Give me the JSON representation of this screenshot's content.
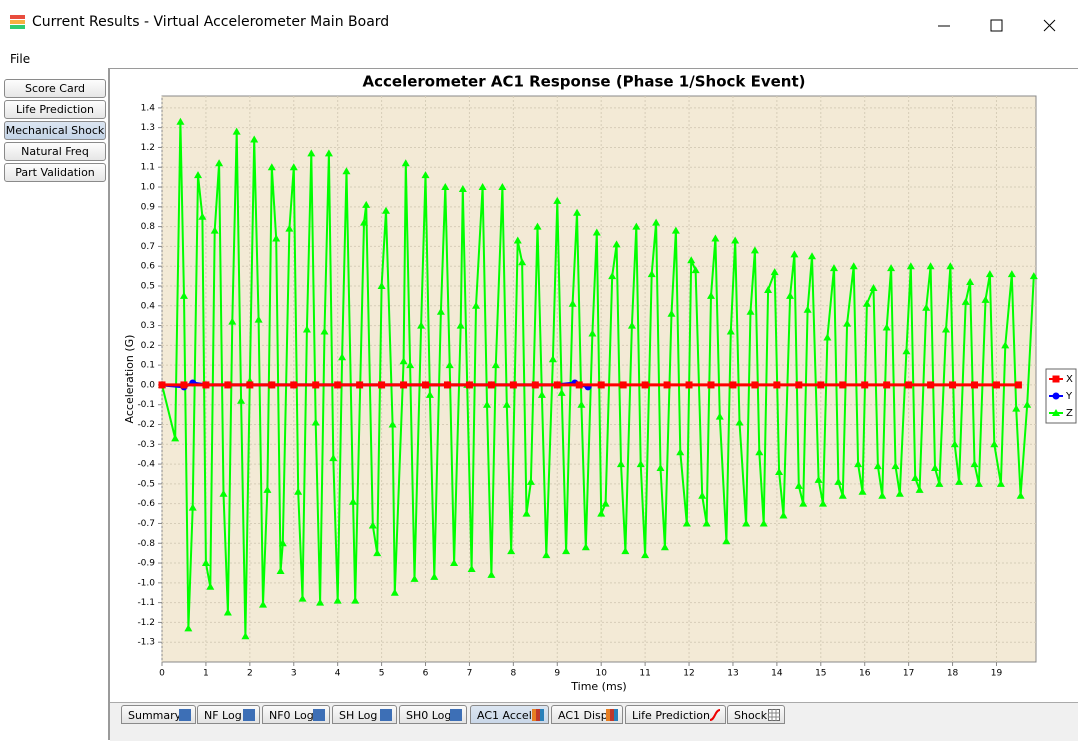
{
  "window": {
    "title": "Current Results - Virtual Accelerometer Main Board"
  },
  "menu": [
    "File"
  ],
  "sidebar": [
    "Score Card",
    "Life Prediction",
    "Mechanical Shock",
    "Natural Freq",
    "Part Validation"
  ],
  "tabs": [
    "Summary",
    "NF Log",
    "NF0 Log",
    "SH Log",
    "SH0 Log",
    "AC1 Accel",
    "AC1 Disp",
    "Life Prediction",
    "Shock"
  ],
  "chart_data": {
    "type": "line",
    "title": "Accelerometer AC1 Response (Phase 1/Shock Event)",
    "x_label": "Time (ms)",
    "y_label": "Acceleration (G)",
    "xlim": [
      0,
      19.9
    ],
    "ylim": [
      -1.4,
      1.46
    ],
    "xticks": [
      0,
      1,
      2,
      3,
      4,
      5,
      6,
      7,
      8,
      9,
      10,
      11,
      12,
      13,
      14,
      15,
      16,
      17,
      18,
      19
    ],
    "yticks": [
      -1.3,
      -1.2,
      -1.1,
      {
        "value": -1.0,
        "label": "-1.0"
      },
      -0.9,
      -0.8,
      -0.7,
      -0.6,
      -0.5,
      -0.4,
      -0.3,
      -0.2,
      -0.1,
      {
        "value": 0,
        "label": "0.0"
      },
      0.1,
      0.2,
      0.3,
      0.4,
      0.5,
      0.6,
      0.7,
      0.8,
      0.9,
      {
        "value": 1.0,
        "label": "1.0"
      },
      1.1,
      1.2,
      1.3,
      1.4
    ],
    "grid": true,
    "legend": "right",
    "series": [
      {
        "name": "X",
        "color": "#ff0000",
        "marker": "square",
        "x": [
          0,
          0.5,
          1,
          1.5,
          2,
          2.5,
          3,
          3.5,
          4,
          4.5,
          5,
          5.5,
          6,
          6.5,
          7,
          7.5,
          8,
          8.5,
          9,
          9.5,
          10,
          10.5,
          11,
          11.5,
          12,
          12.5,
          13,
          13.5,
          14,
          14.5,
          15,
          15.5,
          16,
          16.5,
          17,
          17.5,
          18,
          18.5,
          19,
          19.5
        ],
        "values": [
          0,
          0,
          0,
          0,
          0,
          0,
          0,
          0,
          0,
          0,
          0,
          0,
          0,
          0,
          0,
          0,
          0,
          0,
          0,
          0,
          0,
          0,
          0,
          0,
          0,
          0,
          0,
          0,
          0,
          0,
          0,
          0,
          0,
          0,
          0,
          0,
          0,
          0,
          0,
          0
        ]
      },
      {
        "name": "Y",
        "color": "#0000ff",
        "marker": "circle",
        "x": [
          0,
          0.5,
          0.7,
          1,
          1.5,
          2,
          2.5,
          3,
          3.5,
          4,
          4.5,
          5,
          5.5,
          6,
          6.5,
          7,
          7.5,
          8,
          8.5,
          9,
          9.4,
          9.7
        ],
        "values": [
          0,
          -0.01,
          0.01,
          0,
          0,
          0,
          0,
          0,
          0,
          0,
          0,
          0,
          0,
          0,
          0,
          0,
          0,
          0,
          0,
          0,
          0.01,
          -0.01
        ]
      },
      {
        "name": "Z",
        "color": "#00ff00",
        "marker": "triangle",
        "x": [
          0,
          0.3,
          0.42,
          0.5,
          0.6,
          0.7,
          0.82,
          0.92,
          1.0,
          1.1,
          1.2,
          1.3,
          1.4,
          1.5,
          1.6,
          1.7,
          1.8,
          1.9,
          2.0,
          2.1,
          2.2,
          2.3,
          2.4,
          2.5,
          2.6,
          2.7,
          2.75,
          2.9,
          3.0,
          3.1,
          3.2,
          3.3,
          3.4,
          3.5,
          3.6,
          3.7,
          3.8,
          3.9,
          4.0,
          4.1,
          4.2,
          4.35,
          4.4,
          4.6,
          4.65,
          4.8,
          4.9,
          5.0,
          5.1,
          5.25,
          5.3,
          5.5,
          5.55,
          5.65,
          5.75,
          5.9,
          6.0,
          6.1,
          6.2,
          6.35,
          6.45,
          6.55,
          6.65,
          6.8,
          6.85,
          6.95,
          7.05,
          7.15,
          7.3,
          7.4,
          7.5,
          7.6,
          7.75,
          7.85,
          7.95,
          8.1,
          8.2,
          8.3,
          8.4,
          8.55,
          8.65,
          8.75,
          8.9,
          9.0,
          9.1,
          9.2,
          9.35,
          9.45,
          9.55,
          9.65,
          9.8,
          9.9,
          10.0,
          10.1,
          10.25,
          10.35,
          10.45,
          10.55,
          10.7,
          10.8,
          10.9,
          11.0,
          11.15,
          11.25,
          11.35,
          11.45,
          11.6,
          11.7,
          11.8,
          11.95,
          12.05,
          12.15,
          12.3,
          12.4,
          12.5,
          12.6,
          12.7,
          12.85,
          12.95,
          13.05,
          13.15,
          13.3,
          13.4,
          13.5,
          13.6,
          13.7,
          13.8,
          13.95,
          14.05,
          14.15,
          14.3,
          14.4,
          14.5,
          14.6,
          14.7,
          14.8,
          14.95,
          15.05,
          15.15,
          15.3,
          15.4,
          15.5,
          15.6,
          15.75,
          15.85,
          15.95,
          16.05,
          16.2,
          16.3,
          16.4,
          16.5,
          16.6,
          16.7,
          16.8,
          16.95,
          17.05,
          17.15,
          17.25,
          17.4,
          17.5,
          17.6,
          17.7,
          17.85,
          17.95,
          18.05,
          18.15,
          18.3,
          18.4,
          18.5,
          18.6,
          18.75,
          18.85,
          18.95,
          19.1,
          19.2,
          19.35,
          19.45,
          19.55,
          19.7,
          19.85
        ],
        "values": [
          0,
          -0.27,
          1.33,
          0.45,
          -1.23,
          -0.62,
          1.06,
          0.85,
          -0.9,
          -1.02,
          0.78,
          1.12,
          -0.55,
          -1.15,
          0.32,
          1.28,
          -0.08,
          -1.27,
          0.02,
          1.24,
          0.33,
          -1.11,
          -0.53,
          1.1,
          0.74,
          -0.94,
          -0.8,
          0.79,
          1.1,
          -0.54,
          -1.08,
          0.28,
          1.17,
          -0.19,
          -1.1,
          0.27,
          1.17,
          -0.37,
          -1.09,
          0.14,
          1.08,
          -0.59,
          -1.09,
          0.82,
          0.91,
          -0.71,
          -0.85,
          0.5,
          0.88,
          -0.2,
          -1.05,
          0.12,
          1.12,
          0.1,
          -0.98,
          0.3,
          1.06,
          -0.05,
          -0.97,
          0.37,
          1.0,
          0.1,
          -0.9,
          0.3,
          0.99,
          0.0,
          -0.93,
          0.4,
          1.0,
          -0.1,
          -0.96,
          0.1,
          1.0,
          -0.1,
          -0.84,
          0.73,
          0.62,
          -0.65,
          -0.49,
          0.8,
          -0.05,
          -0.86,
          0.13,
          0.93,
          -0.04,
          -0.84,
          0.41,
          0.87,
          -0.1,
          -0.82,
          0.26,
          0.77,
          -0.65,
          -0.6,
          0.55,
          0.71,
          -0.4,
          -0.84,
          0.3,
          0.8,
          -0.4,
          -0.86,
          0.56,
          0.82,
          -0.42,
          -0.82,
          0.36,
          0.78,
          -0.34,
          -0.7,
          0.63,
          0.58,
          -0.56,
          -0.7,
          0.45,
          0.74,
          -0.16,
          -0.79,
          0.27,
          0.73,
          -0.19,
          -0.7,
          0.37,
          0.68,
          -0.34,
          -0.7,
          0.48,
          0.57,
          -0.44,
          -0.66,
          0.45,
          0.66,
          -0.51,
          -0.6,
          0.38,
          0.65,
          -0.48,
          -0.6,
          0.24,
          0.59,
          -0.49,
          -0.56,
          0.31,
          0.6,
          -0.4,
          -0.54,
          0.41,
          0.49,
          -0.41,
          -0.56,
          0.29,
          0.59,
          -0.41,
          -0.55,
          0.17,
          0.6,
          -0.47,
          -0.53,
          0.39,
          0.6,
          -0.42,
          -0.5,
          0.28,
          0.6,
          -0.3,
          -0.49,
          0.42,
          0.52,
          -0.4,
          -0.5,
          0.43,
          0.56,
          -0.3,
          -0.5,
          0.2,
          0.56,
          -0.12,
          -0.56,
          -0.1,
          0.55
        ]
      }
    ]
  }
}
